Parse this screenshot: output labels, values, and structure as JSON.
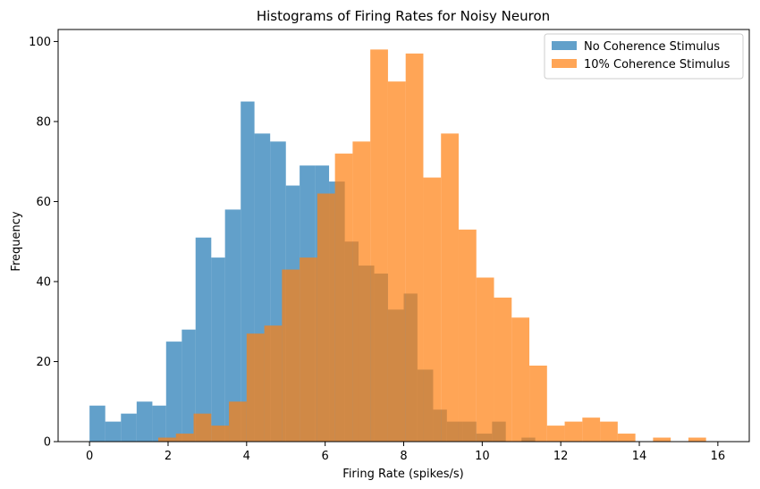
{
  "chart_data": {
    "type": "bar",
    "title": "Histograms of Firing Rates for Noisy Neuron",
    "xlabel": "Firing Rate (spikes/s)",
    "ylabel": "Frequency",
    "xlim": [
      -0.8,
      16.8
    ],
    "ylim": [
      0,
      103
    ],
    "xticks": [
      0,
      2,
      4,
      6,
      8,
      10,
      12,
      14,
      16
    ],
    "yticks": [
      0,
      20,
      40,
      60,
      80,
      100
    ],
    "grid": false,
    "legend_position": "top-right",
    "series": [
      {
        "name": "No Coherence Stimulus",
        "color": "#1f77b4",
        "opacity": 0.7,
        "bins": [
          [
            0.0,
            0.4,
            9
          ],
          [
            0.4,
            0.8,
            5
          ],
          [
            0.8,
            1.2,
            7
          ],
          [
            1.2,
            1.6,
            10
          ],
          [
            1.6,
            1.95,
            9
          ],
          [
            1.95,
            2.35,
            25
          ],
          [
            2.35,
            2.7,
            28
          ],
          [
            2.7,
            3.1,
            51
          ],
          [
            3.1,
            3.45,
            46
          ],
          [
            3.45,
            3.85,
            58
          ],
          [
            3.85,
            4.2,
            85
          ],
          [
            4.2,
            4.6,
            77
          ],
          [
            4.6,
            5.0,
            75
          ],
          [
            5.0,
            5.35,
            64
          ],
          [
            5.35,
            5.75,
            69
          ],
          [
            5.75,
            6.1,
            69
          ],
          [
            6.1,
            6.5,
            65
          ],
          [
            6.5,
            6.85,
            50
          ],
          [
            6.85,
            7.25,
            44
          ],
          [
            7.25,
            7.6,
            42
          ],
          [
            7.6,
            8.0,
            33
          ],
          [
            8.0,
            8.35,
            37
          ],
          [
            8.35,
            8.75,
            18
          ],
          [
            8.75,
            9.1,
            8
          ],
          [
            9.1,
            9.5,
            5
          ],
          [
            9.5,
            9.85,
            5
          ],
          [
            9.85,
            10.25,
            2
          ],
          [
            10.25,
            10.6,
            5
          ],
          [
            10.6,
            11.0,
            0
          ],
          [
            11.0,
            11.35,
            1
          ]
        ]
      },
      {
        "name": "10% Coherence Stimulus",
        "color": "#ff7f0e",
        "opacity": 0.7,
        "bins": [
          [
            1.75,
            2.2,
            1
          ],
          [
            2.2,
            2.65,
            2
          ],
          [
            2.65,
            3.1,
            7
          ],
          [
            3.1,
            3.55,
            4
          ],
          [
            3.55,
            4.0,
            10
          ],
          [
            4.0,
            4.45,
            27
          ],
          [
            4.45,
            4.9,
            29
          ],
          [
            4.9,
            5.35,
            43
          ],
          [
            5.35,
            5.8,
            46
          ],
          [
            5.8,
            6.25,
            62
          ],
          [
            6.25,
            6.7,
            72
          ],
          [
            6.7,
            7.15,
            75
          ],
          [
            7.15,
            7.6,
            98
          ],
          [
            7.6,
            8.05,
            90
          ],
          [
            8.05,
            8.5,
            97
          ],
          [
            8.5,
            8.95,
            66
          ],
          [
            8.95,
            9.4,
            77
          ],
          [
            9.4,
            9.85,
            53
          ],
          [
            9.85,
            10.3,
            41
          ],
          [
            10.3,
            10.75,
            36
          ],
          [
            10.75,
            11.2,
            31
          ],
          [
            11.2,
            11.65,
            19
          ],
          [
            11.65,
            12.1,
            4
          ],
          [
            12.1,
            12.55,
            5
          ],
          [
            12.55,
            13.0,
            6
          ],
          [
            13.0,
            13.45,
            5
          ],
          [
            13.45,
            13.9,
            2
          ],
          [
            13.9,
            14.35,
            0
          ],
          [
            14.35,
            14.8,
            1
          ],
          [
            14.8,
            15.25,
            0
          ],
          [
            15.25,
            15.7,
            1
          ]
        ]
      }
    ]
  }
}
